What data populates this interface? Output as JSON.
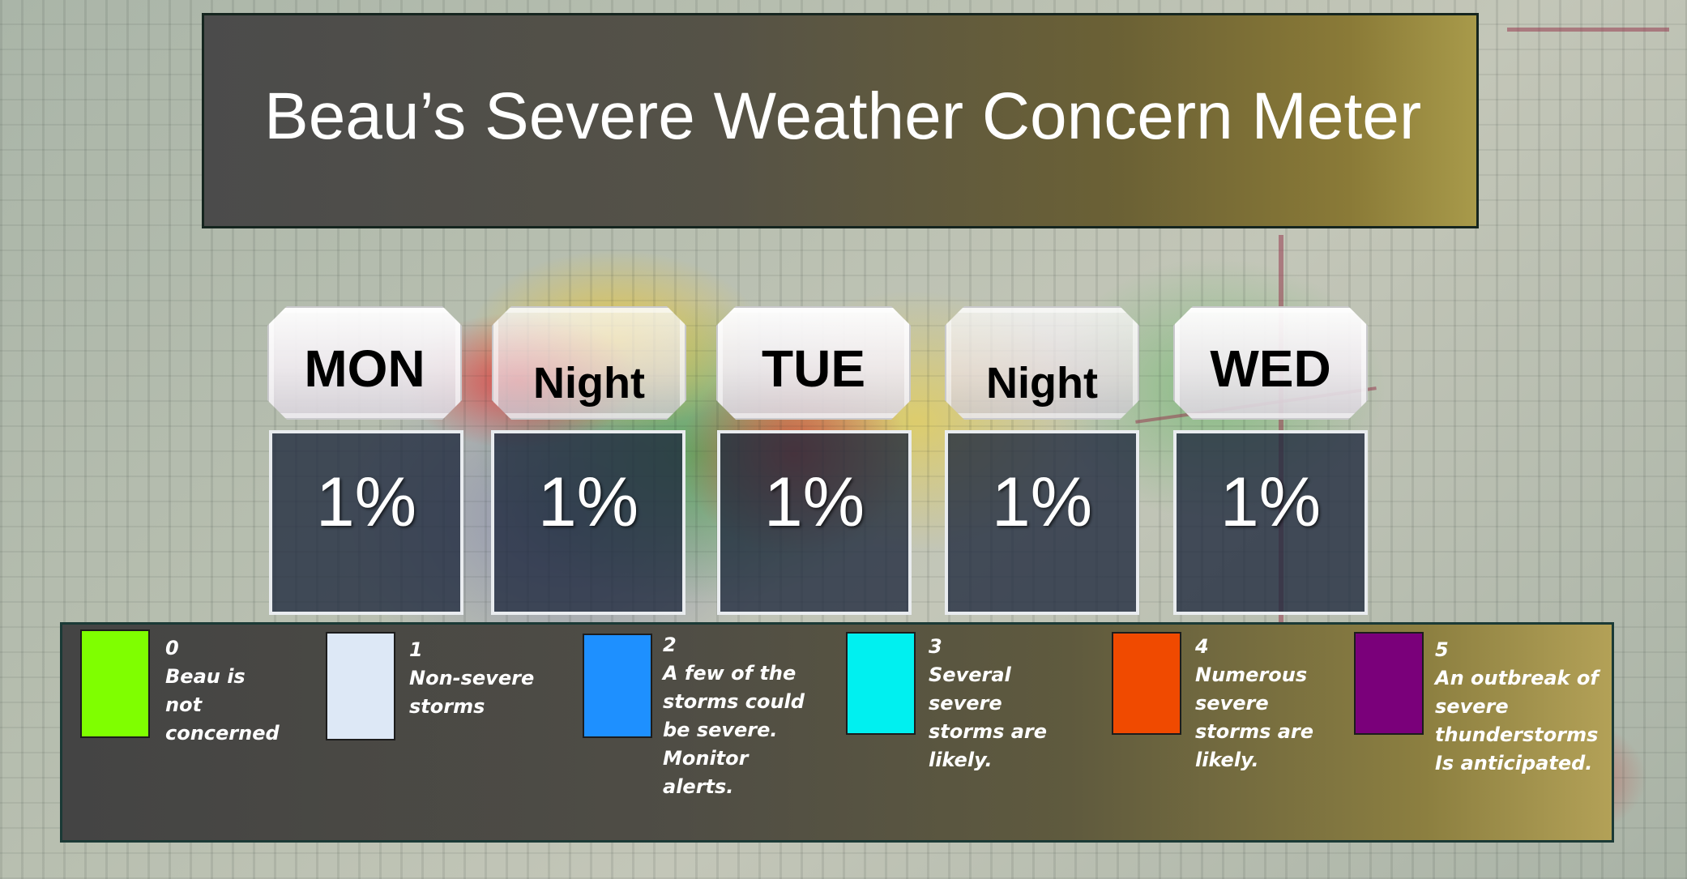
{
  "title": "Beau’s Severe Weather Concern Meter",
  "periods": [
    {
      "label": "MON",
      "value": "1%"
    },
    {
      "label": "Night",
      "value": "1%"
    },
    {
      "label": "TUE",
      "value": "1%"
    },
    {
      "label": "Night",
      "value": "1%"
    },
    {
      "label": "WED",
      "value": "1%"
    }
  ],
  "legend": [
    {
      "level": "0",
      "text": "Beau is\nnot\nconcerned",
      "color": "#7fff00"
    },
    {
      "level": "1",
      "text": "Non-severe\nstorms",
      "color": "#dde8f6"
    },
    {
      "level": "2",
      "text": "A few of the\nstorms could\nbe severe.\nMonitor\nalerts.",
      "color": "#1e90ff"
    },
    {
      "level": "3",
      "text": "Several\nsevere\nstorms are\nlikely.",
      "color": "#00f0f0"
    },
    {
      "level": "4",
      "text": "Numerous\nsevere\nstorms are\nlikely.",
      "color": "#f04a00"
    },
    {
      "level": "5",
      "text": "An outbreak of\nsevere\nthunderstorms\nIs anticipated.",
      "color": "#7a007a"
    }
  ]
}
